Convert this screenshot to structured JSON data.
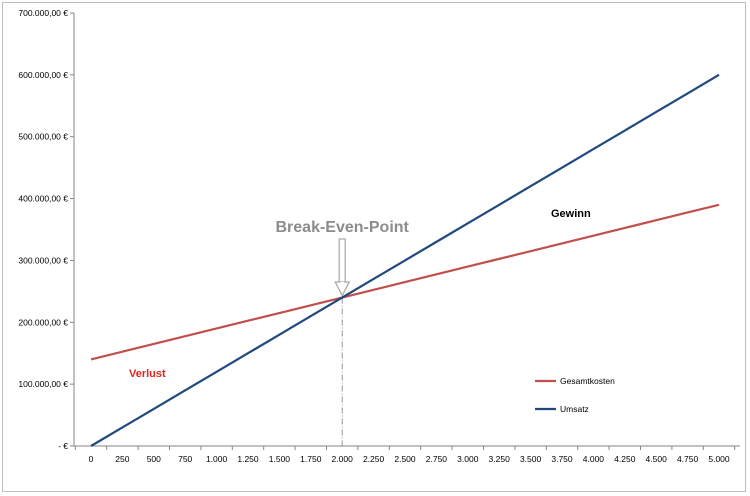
{
  "chart_data": {
    "type": "line",
    "title": "",
    "xlabel": "",
    "ylabel": "",
    "x": [
      0,
      250,
      500,
      750,
      1000,
      1250,
      1500,
      1750,
      2000,
      2250,
      2500,
      2750,
      3000,
      3250,
      3500,
      3750,
      4000,
      4250,
      4500,
      4750,
      5000
    ],
    "x_tick_labels": [
      "0",
      "250",
      "500",
      "750",
      "1.000",
      "1.250",
      "1.500",
      "1.750",
      "2.000",
      "2.250",
      "2.500",
      "2.750",
      "3.000",
      "3.250",
      "3.500",
      "3.750",
      "4.000",
      "4.250",
      "4.500",
      "4.750",
      "5.000"
    ],
    "ylim": [
      0,
      700000
    ],
    "y_ticks": [
      0,
      100000,
      200000,
      300000,
      400000,
      500000,
      600000,
      700000
    ],
    "y_tick_labels": [
      "-  €",
      "100.000,00 €",
      "200.000,00 €",
      "300.000,00 €",
      "400.000,00 €",
      "500.000,00 €",
      "600.000,00 €",
      "700.000,00 €"
    ],
    "grid": false,
    "legend_position": "right",
    "series": [
      {
        "name": "Gesamtkosten",
        "color": "#c0504d",
        "values": [
          140000,
          152500,
          165000,
          177500,
          190000,
          202500,
          215000,
          227500,
          240000,
          252500,
          265000,
          277500,
          290000,
          302500,
          315000,
          327500,
          340000,
          352500,
          365000,
          377500,
          390000
        ]
      },
      {
        "name": "Umsatz",
        "color": "#1f497d",
        "values": [
          0,
          30000,
          60000,
          90000,
          120000,
          150000,
          180000,
          210000,
          240000,
          270000,
          300000,
          330000,
          360000,
          390000,
          420000,
          450000,
          480000,
          510000,
          540000,
          570000,
          600000
        ]
      }
    ],
    "annotations": {
      "break_even": {
        "label": "Break-Even-Point",
        "x": 2000,
        "y": 240000,
        "color": "#8c8c8c"
      },
      "gewinn": {
        "label": "Gewinn",
        "color": "#000000"
      },
      "verlust": {
        "label": "Verlust",
        "color": "#e0261f"
      }
    }
  }
}
